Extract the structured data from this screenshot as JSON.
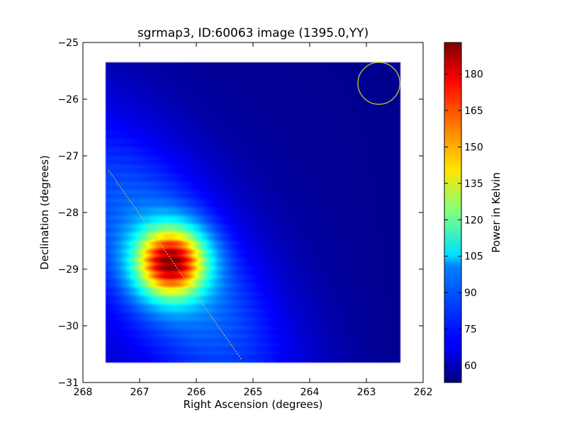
{
  "chart_data": {
    "type": "heatmap",
    "title": "sgrmap3, ID:60063 image (1395.0,YY)",
    "xlabel": "Right Ascension (degrees)",
    "ylabel": "Declination (degrees)",
    "xlim": [
      268,
      262
    ],
    "ylim": [
      -31,
      -25
    ],
    "x_ticks": [
      {
        "value": 268,
        "label": "268"
      },
      {
        "value": 267,
        "label": "267"
      },
      {
        "value": 266,
        "label": "266"
      },
      {
        "value": 265,
        "label": "265"
      },
      {
        "value": 264,
        "label": "264"
      },
      {
        "value": 263,
        "label": "263"
      },
      {
        "value": 262,
        "label": "262"
      }
    ],
    "y_ticks": [
      {
        "value": -25,
        "label": "−25"
      },
      {
        "value": -26,
        "label": "−26"
      },
      {
        "value": -27,
        "label": "−27"
      },
      {
        "value": -28,
        "label": "−28"
      },
      {
        "value": -29,
        "label": "−29"
      },
      {
        "value": -30,
        "label": "−30"
      },
      {
        "value": -31,
        "label": "−31"
      }
    ],
    "colorbar": {
      "label": "Power in Kelvin",
      "range": [
        53,
        193
      ],
      "colormap": "jet",
      "ticks": [
        {
          "value": 60,
          "label": "60"
        },
        {
          "value": 75,
          "label": "75"
        },
        {
          "value": 90,
          "label": "90"
        },
        {
          "value": 105,
          "label": "105"
        },
        {
          "value": 120,
          "label": "120"
        },
        {
          "value": 135,
          "label": "135"
        },
        {
          "value": 150,
          "label": "150"
        },
        {
          "value": 165,
          "label": "165"
        },
        {
          "value": 180,
          "label": "180"
        }
      ]
    },
    "data_extent": {
      "ra": [
        267.6,
        262.4
      ],
      "dec": [
        -30.65,
        -25.35
      ]
    },
    "peak": {
      "ra": 266.45,
      "dec": -28.88,
      "value": 190
    },
    "background_value": 55,
    "galactic_plane_line": {
      "ra": [
        267.55,
        265.2
      ],
      "dec": [
        -27.25,
        -30.6
      ],
      "color": "#d4c43a"
    },
    "beam_circle": {
      "ra": 262.78,
      "dec": -25.72,
      "radius_deg": 0.37,
      "color": "#c8c832"
    },
    "grid": false
  }
}
